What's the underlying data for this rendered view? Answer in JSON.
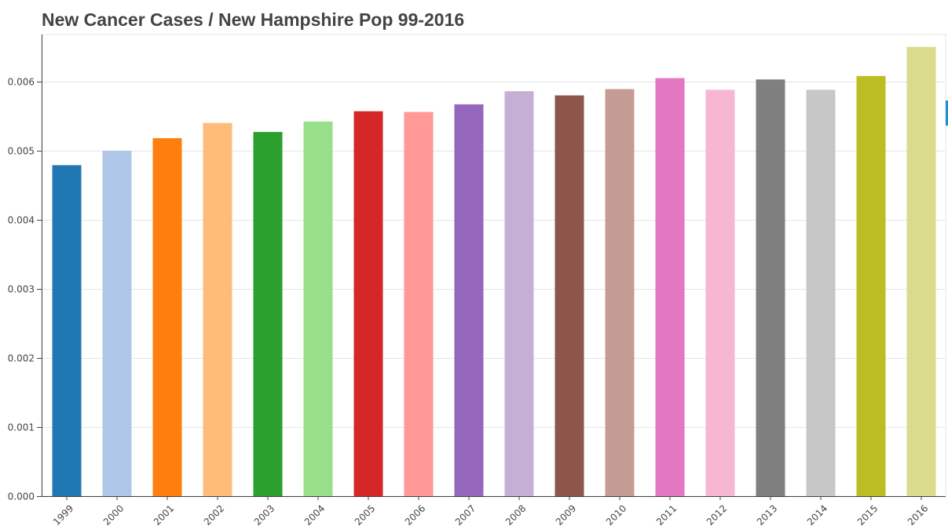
{
  "chart_data": {
    "type": "bar",
    "title": "New Cancer Cases / New Hampshire Pop 99-2016",
    "xlabel": "",
    "ylabel": "",
    "categories": [
      "1999",
      "2000",
      "2001",
      "2002",
      "2003",
      "2004",
      "2005",
      "2006",
      "2007",
      "2008",
      "2009",
      "2010",
      "2011",
      "2012",
      "2013",
      "2014",
      "2015",
      "2016"
    ],
    "values": [
      0.00479,
      0.005,
      0.00518,
      0.0054,
      0.00527,
      0.00542,
      0.00557,
      0.00556,
      0.00567,
      0.00586,
      0.0058,
      0.00589,
      0.00605,
      0.00588,
      0.00603,
      0.00588,
      0.00608,
      0.0065
    ],
    "colors": [
      "#1f77b4",
      "#aec7e8",
      "#ff7f0e",
      "#ffbb78",
      "#2ca02c",
      "#98df8a",
      "#d62728",
      "#ff9896",
      "#9467bd",
      "#c5b0d5",
      "#8c564b",
      "#c49c94",
      "#e377c2",
      "#f7b6d2",
      "#7f7f7f",
      "#c7c7c7",
      "#bcbd22",
      "#dbdb8d"
    ],
    "ylim": [
      0,
      0.00668
    ],
    "yticks": [
      "0.000",
      "0.001",
      "0.002",
      "0.003",
      "0.004",
      "0.005",
      "0.006"
    ],
    "ytick_values": [
      0,
      0.001,
      0.002,
      0.003,
      0.004,
      0.005,
      0.006
    ],
    "grid": true,
    "legend": "none"
  }
}
